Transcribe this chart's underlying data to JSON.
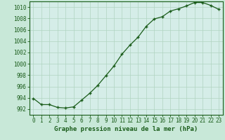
{
  "x": [
    0,
    1,
    2,
    3,
    4,
    5,
    6,
    7,
    8,
    9,
    10,
    11,
    12,
    13,
    14,
    15,
    16,
    17,
    18,
    19,
    20,
    21,
    22,
    23
  ],
  "y": [
    993.9,
    992.8,
    992.8,
    992.3,
    992.2,
    992.4,
    993.6,
    994.8,
    996.2,
    997.9,
    999.6,
    1001.7,
    1003.3,
    1004.7,
    1006.6,
    1007.9,
    1008.3,
    1009.3,
    1009.7,
    1010.2,
    1010.8,
    1010.8,
    1010.3,
    1009.6
  ],
  "ylim": [
    991.0,
    1011.0
  ],
  "yticks": [
    992,
    994,
    996,
    998,
    1000,
    1002,
    1004,
    1006,
    1008,
    1010
  ],
  "xlim": [
    -0.5,
    23.5
  ],
  "xticks": [
    0,
    1,
    2,
    3,
    4,
    5,
    6,
    7,
    8,
    9,
    10,
    11,
    12,
    13,
    14,
    15,
    16,
    17,
    18,
    19,
    20,
    21,
    22,
    23
  ],
  "line_color": "#1a5c1a",
  "marker": "+",
  "marker_size": 3.5,
  "marker_edge_width": 1.0,
  "plot_bg_color": "#d5ede8",
  "fig_bg_color": "#c8e8d8",
  "grid_color": "#b0d4c0",
  "xlabel": "Graphe pression niveau de la mer (hPa)",
  "xlabel_fontsize": 6.5,
  "tick_fontsize": 5.5,
  "line_width": 0.9,
  "spine_color": "#1a5c1a",
  "spine_linewidth": 0.8
}
